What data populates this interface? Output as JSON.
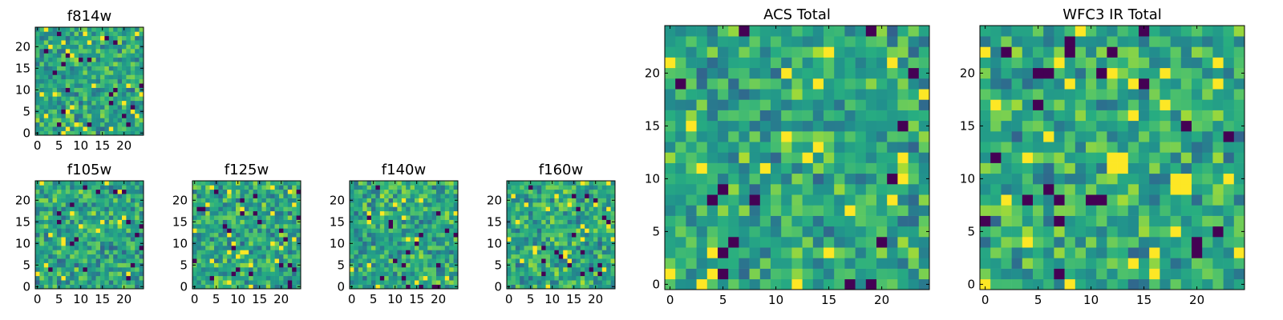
{
  "chart_data": [
    {
      "type": "heatmap",
      "title": "f814w",
      "grid_size": 25,
      "xlim": [
        0,
        24
      ],
      "ylim": [
        0,
        24
      ],
      "xticks": [
        "0",
        "5",
        "10",
        "15",
        "20"
      ],
      "yticks": [
        "0",
        "5",
        "10",
        "15",
        "20"
      ],
      "colormap": "viridis",
      "seed": 814
    },
    {
      "type": "heatmap",
      "title": "f105w",
      "grid_size": 25,
      "xlim": [
        0,
        24
      ],
      "ylim": [
        0,
        24
      ],
      "xticks": [
        "0",
        "5",
        "10",
        "15",
        "20"
      ],
      "yticks": [
        "0",
        "5",
        "10",
        "15",
        "20"
      ],
      "colormap": "viridis",
      "seed": 105
    },
    {
      "type": "heatmap",
      "title": "f125w",
      "grid_size": 25,
      "xlim": [
        0,
        24
      ],
      "ylim": [
        0,
        24
      ],
      "xticks": [
        "0",
        "5",
        "10",
        "15",
        "20"
      ],
      "yticks": [
        "0",
        "5",
        "10",
        "15",
        "20"
      ],
      "colormap": "viridis",
      "seed": 125
    },
    {
      "type": "heatmap",
      "title": "f140w",
      "grid_size": 25,
      "xlim": [
        0,
        24
      ],
      "ylim": [
        0,
        24
      ],
      "xticks": [
        "0",
        "5",
        "10",
        "15",
        "20"
      ],
      "yticks": [
        "0",
        "5",
        "10",
        "15",
        "20"
      ],
      "colormap": "viridis",
      "seed": 140
    },
    {
      "type": "heatmap",
      "title": "f160w",
      "grid_size": 25,
      "xlim": [
        0,
        24
      ],
      "ylim": [
        0,
        24
      ],
      "xticks": [
        "0",
        "5",
        "10",
        "15",
        "20"
      ],
      "yticks": [
        "0",
        "5",
        "10",
        "15",
        "20"
      ],
      "colormap": "viridis",
      "seed": 160
    },
    {
      "type": "heatmap",
      "title": "ACS Total",
      "grid_size": 25,
      "xlim": [
        0,
        24
      ],
      "ylim": [
        0,
        24
      ],
      "xticks": [
        "0",
        "5",
        "10",
        "15",
        "20"
      ],
      "yticks": [
        "0",
        "5",
        "10",
        "15",
        "20"
      ],
      "colormap": "viridis",
      "seed": 900
    },
    {
      "type": "heatmap",
      "title": "WFC3 IR Total",
      "grid_size": 25,
      "xlim": [
        0,
        24
      ],
      "ylim": [
        0,
        24
      ],
      "xticks": [
        "0",
        "5",
        "10",
        "15",
        "20"
      ],
      "yticks": [
        "0",
        "5",
        "10",
        "15",
        "20"
      ],
      "colormap": "viridis",
      "seed": 901,
      "highlights": [
        {
          "x": [
            12,
            13
          ],
          "y": [
            11,
            12
          ],
          "value": 1.0
        },
        {
          "x": [
            18,
            19
          ],
          "y": [
            9,
            10
          ],
          "value": 1.0
        }
      ]
    }
  ]
}
